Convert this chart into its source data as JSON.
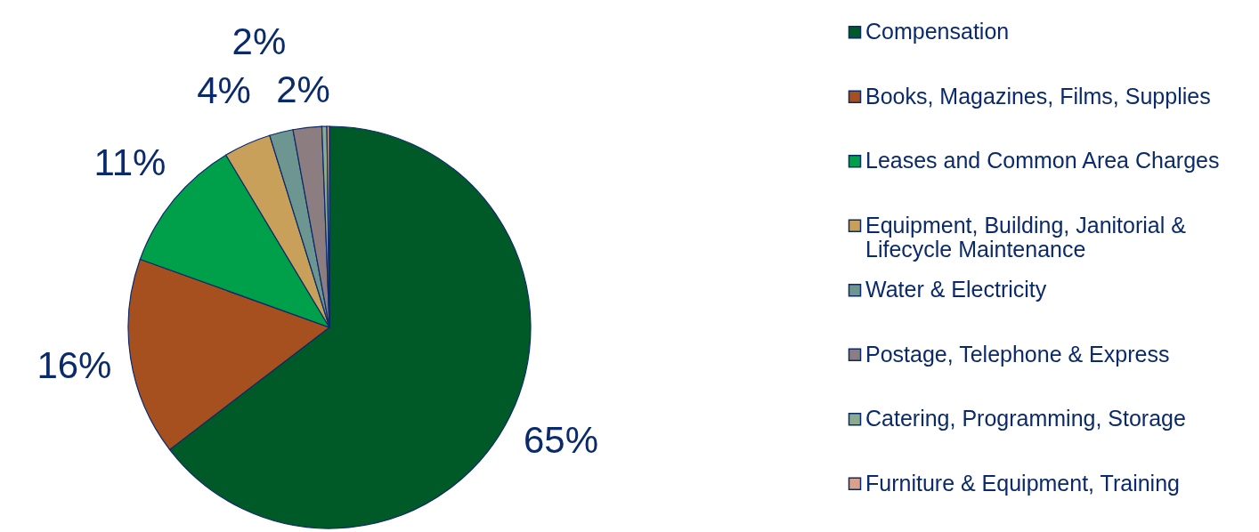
{
  "chart_data": {
    "type": "pie",
    "categories": [
      "Compensation",
      "Books, Magazines, Films, Supplies",
      "Leases and Common Area Charges",
      "Equipment, Building, Janitorial & Lifecycle Maintenance",
      "Water & Electricity",
      "Postage, Telephone & Express",
      "Catering, Programming, Storage",
      "Furniture & Equipment, Training"
    ],
    "values": [
      64.6,
      15.9,
      10.9,
      3.8,
      1.9,
      2.3,
      0.4,
      0.2
    ],
    "colors": [
      "#005a28",
      "#a5501e",
      "#00a04b",
      "#c8a05a",
      "#6e9690",
      "#8c7d80",
      "#8caa90",
      "#d9a08c"
    ],
    "value_labels": [
      "65%",
      "16%",
      "11%",
      "4%",
      "2%",
      "2%",
      null,
      null
    ],
    "legend": "right"
  }
}
